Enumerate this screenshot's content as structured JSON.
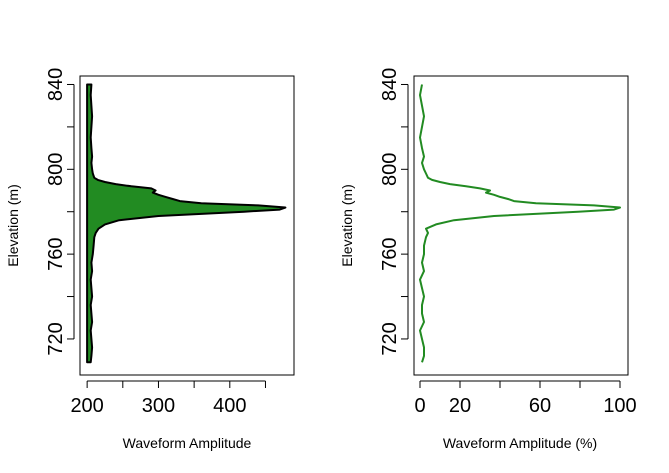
{
  "chart_data": [
    {
      "type": "area",
      "xlabel": "Waveform Amplitude",
      "ylabel": "Elevation (m)",
      "xlim": [
        190,
        490
      ],
      "ylim": [
        703,
        844
      ],
      "xticks": [
        200,
        250,
        300,
        350,
        400,
        450
      ],
      "xtick_labels": [
        "200",
        "",
        "300",
        "",
        "400",
        ""
      ],
      "yticks": [
        720,
        740,
        760,
        780,
        800,
        820,
        840
      ],
      "ytick_labels": [
        "720",
        "",
        "760",
        "",
        "800",
        "",
        "840"
      ],
      "baseline": 200,
      "fill_color": "#228b22",
      "line_color": "#000000",
      "series": [
        {
          "elevation": [
            709,
            712,
            716,
            720,
            724,
            728,
            732,
            736,
            740,
            744,
            748,
            752,
            756,
            760,
            764,
            768,
            770,
            772,
            774,
            776,
            778,
            780,
            781,
            782,
            783,
            784,
            785,
            786,
            787,
            788,
            789,
            790,
            791,
            792,
            793,
            794,
            795,
            796,
            798,
            800,
            803,
            806,
            810,
            815,
            820,
            825,
            830,
            835,
            840
          ],
          "amplitude": [
            205,
            206,
            207,
            206,
            205,
            207,
            206,
            205,
            207,
            206,
            205,
            207,
            206,
            208,
            209,
            210,
            212,
            216,
            225,
            245,
            300,
            420,
            470,
            478,
            440,
            360,
            330,
            320,
            310,
            300,
            292,
            296,
            290,
            262,
            240,
            225,
            215,
            210,
            208,
            207,
            206,
            207,
            206,
            205,
            206,
            207,
            206,
            205,
            206
          ]
        }
      ]
    },
    {
      "type": "line",
      "xlabel": "Waveform Amplitude (%)",
      "ylabel": "Elevation (m)",
      "xlim": [
        -3,
        104
      ],
      "ylim": [
        703,
        844
      ],
      "xticks": [
        0,
        20,
        40,
        60,
        80,
        100
      ],
      "xtick_labels": [
        "0",
        "20",
        "",
        "60",
        "",
        "100"
      ],
      "yticks": [
        720,
        740,
        760,
        780,
        800,
        820,
        840
      ],
      "ytick_labels": [
        "720",
        "",
        "760",
        "",
        "800",
        "",
        "840"
      ],
      "line_color": "#228b22",
      "series": [
        {
          "elevation": [
            709,
            712,
            716,
            720,
            724,
            728,
            732,
            736,
            740,
            744,
            748,
            752,
            756,
            760,
            764,
            768,
            770,
            772,
            774,
            776,
            778,
            780,
            781,
            782,
            783,
            784,
            785,
            786,
            787,
            788,
            789,
            790,
            791,
            792,
            793,
            794,
            795,
            796,
            798,
            800,
            803,
            806,
            810,
            815,
            820,
            825,
            830,
            835,
            840
          ],
          "amplitude": [
            1,
            2,
            2,
            1,
            0,
            2,
            1,
            1,
            2,
            1,
            0,
            2,
            1,
            2,
            2,
            3,
            4,
            3,
            8,
            17,
            37,
            79,
            97,
            100,
            87,
            58,
            47,
            44,
            40,
            37,
            33,
            35,
            30,
            23,
            15,
            10,
            6,
            4,
            3,
            2,
            1,
            2,
            1,
            0,
            1,
            2,
            1,
            0,
            1
          ]
        }
      ]
    }
  ]
}
